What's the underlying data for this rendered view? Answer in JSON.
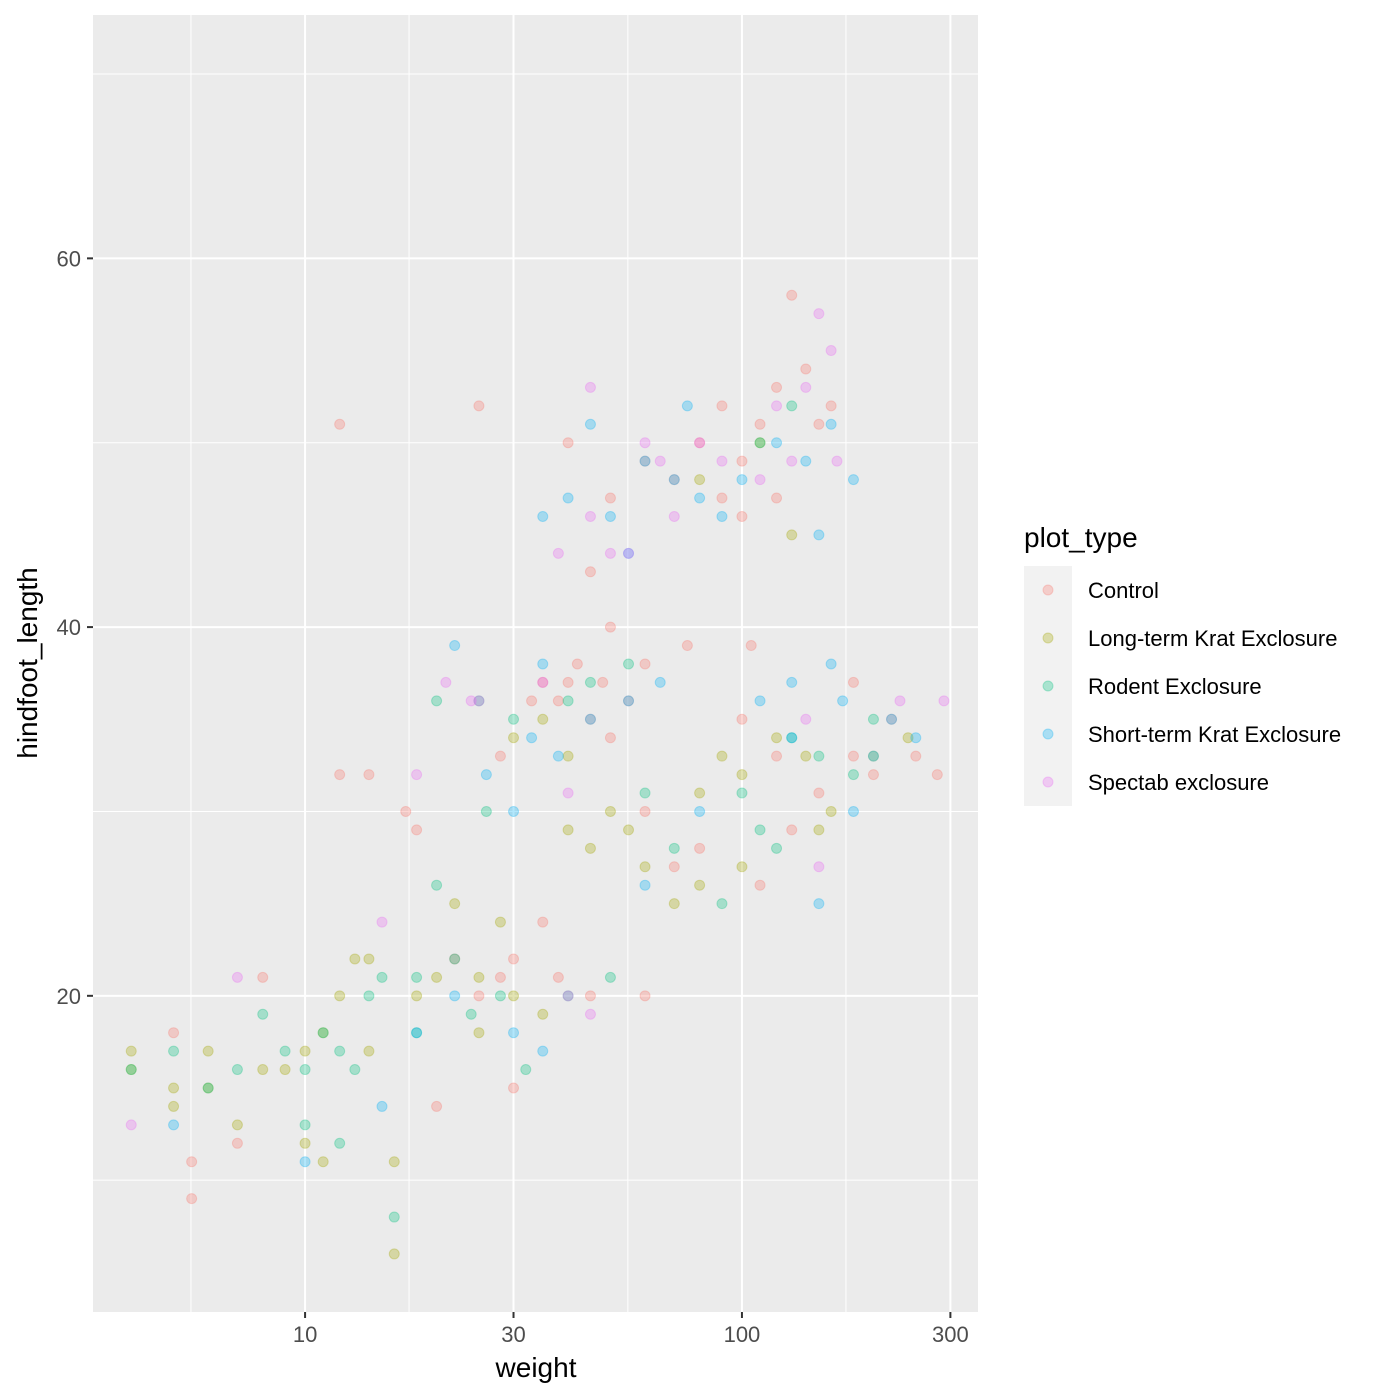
{
  "chart_data": {
    "type": "scatter",
    "xlabel": "weight",
    "ylabel": "hindfoot_length",
    "x_scale": "log10",
    "xlim": [
      3.27,
      347
    ],
    "ylim": [
      2.85,
      73.2
    ],
    "x_ticks": [
      "10",
      "30",
      "100",
      "300"
    ],
    "x_tick_values": [
      10,
      30,
      100,
      300
    ],
    "x_minor": [
      5.48,
      17.3,
      54.8,
      173
    ],
    "y_ticks": [
      "20",
      "40",
      "60"
    ],
    "y_tick_values": [
      20,
      40,
      60
    ],
    "y_minor": [
      10,
      30,
      50,
      70
    ],
    "grid": true,
    "point_alpha": 0.3,
    "legend": {
      "title": "plot_type",
      "position": "right"
    },
    "series": [
      {
        "name": "Control",
        "color": "#F8766D",
        "points": [
          [
            5,
            18
          ],
          [
            5.5,
            9
          ],
          [
            5.5,
            11
          ],
          [
            7,
            12
          ],
          [
            8,
            21
          ],
          [
            12,
            32
          ],
          [
            14,
            32
          ],
          [
            17,
            30
          ],
          [
            18,
            29
          ],
          [
            20,
            14
          ],
          [
            22,
            22
          ],
          [
            25,
            20
          ],
          [
            28,
            21
          ],
          [
            30,
            15
          ],
          [
            33,
            36
          ],
          [
            35,
            37
          ],
          [
            38,
            36
          ],
          [
            40,
            37
          ],
          [
            42,
            38
          ],
          [
            45,
            35
          ],
          [
            48,
            37
          ],
          [
            50,
            34
          ],
          [
            55,
            36
          ],
          [
            60,
            38
          ],
          [
            50,
            40
          ],
          [
            40,
            50
          ],
          [
            45,
            43
          ],
          [
            50,
            47
          ],
          [
            60,
            49
          ],
          [
            70,
            48
          ],
          [
            80,
            50
          ],
          [
            90,
            52
          ],
          [
            100,
            49
          ],
          [
            110,
            51
          ],
          [
            120,
            53
          ],
          [
            130,
            58
          ],
          [
            140,
            54
          ],
          [
            150,
            51
          ],
          [
            160,
            52
          ],
          [
            120,
            47
          ],
          [
            100,
            46
          ],
          [
            90,
            47
          ],
          [
            105,
            39
          ],
          [
            75,
            39
          ],
          [
            60,
            20
          ],
          [
            100,
            35
          ],
          [
            120,
            33
          ],
          [
            150,
            31
          ],
          [
            180,
            33
          ],
          [
            200,
            32
          ],
          [
            250,
            33
          ],
          [
            280,
            32
          ],
          [
            220,
            35
          ],
          [
            180,
            37
          ],
          [
            130,
            29
          ],
          [
            110,
            26
          ],
          [
            80,
            28
          ],
          [
            70,
            27
          ],
          [
            60,
            30
          ],
          [
            35,
            24
          ],
          [
            30,
            22
          ],
          [
            28,
            33
          ],
          [
            38,
            21
          ],
          [
            45,
            20
          ],
          [
            25,
            52
          ],
          [
            12,
            51
          ]
        ]
      },
      {
        "name": "Long-term Krat Exclosure",
        "color": "#A3A500",
        "points": [
          [
            4,
            17
          ],
          [
            4,
            16
          ],
          [
            5,
            15
          ],
          [
            5,
            14
          ],
          [
            6,
            17
          ],
          [
            6,
            15
          ],
          [
            7,
            13
          ],
          [
            8,
            16
          ],
          [
            9,
            16
          ],
          [
            10,
            17
          ],
          [
            11,
            18
          ],
          [
            12,
            20
          ],
          [
            13,
            22
          ],
          [
            14,
            17
          ],
          [
            16,
            11
          ],
          [
            10,
            12
          ],
          [
            11,
            11
          ],
          [
            16,
            6
          ],
          [
            14,
            22
          ],
          [
            18,
            20
          ],
          [
            20,
            21
          ],
          [
            22,
            25
          ],
          [
            25,
            21
          ],
          [
            28,
            24
          ],
          [
            30,
            20
          ],
          [
            35,
            19
          ],
          [
            40,
            29
          ],
          [
            45,
            28
          ],
          [
            50,
            30
          ],
          [
            55,
            29
          ],
          [
            60,
            27
          ],
          [
            70,
            25
          ],
          [
            80,
            31
          ],
          [
            90,
            33
          ],
          [
            100,
            32
          ],
          [
            120,
            34
          ],
          [
            140,
            33
          ],
          [
            160,
            30
          ],
          [
            200,
            33
          ],
          [
            240,
            34
          ],
          [
            150,
            29
          ],
          [
            80,
            26
          ],
          [
            40,
            33
          ],
          [
            35,
            35
          ],
          [
            30,
            34
          ],
          [
            80,
            48
          ],
          [
            110,
            50
          ],
          [
            130,
            45
          ],
          [
            100,
            27
          ],
          [
            25,
            18
          ]
        ]
      },
      {
        "name": "Rodent Exclosure",
        "color": "#00BF7D",
        "points": [
          [
            4,
            16
          ],
          [
            5,
            17
          ],
          [
            6,
            15
          ],
          [
            7,
            16
          ],
          [
            8,
            19
          ],
          [
            9,
            17
          ],
          [
            10,
            16
          ],
          [
            11,
            18
          ],
          [
            12,
            17
          ],
          [
            13,
            16
          ],
          [
            14,
            20
          ],
          [
            15,
            21
          ],
          [
            16,
            8
          ],
          [
            12,
            12
          ],
          [
            10,
            13
          ],
          [
            18,
            18
          ],
          [
            20,
            26
          ],
          [
            22,
            22
          ],
          [
            24,
            19
          ],
          [
            28,
            20
          ],
          [
            32,
            16
          ],
          [
            40,
            20
          ],
          [
            50,
            21
          ],
          [
            20,
            36
          ],
          [
            25,
            36
          ],
          [
            30,
            35
          ],
          [
            45,
            37
          ],
          [
            55,
            38
          ],
          [
            60,
            31
          ],
          [
            90,
            25
          ],
          [
            110,
            29
          ],
          [
            130,
            34
          ],
          [
            150,
            33
          ],
          [
            180,
            32
          ],
          [
            200,
            35
          ],
          [
            100,
            31
          ],
          [
            120,
            28
          ],
          [
            70,
            28
          ],
          [
            110,
            50
          ],
          [
            130,
            52
          ],
          [
            40,
            36
          ],
          [
            26,
            30
          ],
          [
            18,
            21
          ]
        ]
      },
      {
        "name": "Short-term Krat Exclosure",
        "color": "#00B0F6",
        "points": [
          [
            5,
            13
          ],
          [
            10,
            11
          ],
          [
            15,
            14
          ],
          [
            18,
            18
          ],
          [
            22,
            20
          ],
          [
            30,
            18
          ],
          [
            35,
            17
          ],
          [
            22,
            39
          ],
          [
            26,
            32
          ],
          [
            30,
            30
          ],
          [
            33,
            34
          ],
          [
            38,
            33
          ],
          [
            45,
            35
          ],
          [
            55,
            36
          ],
          [
            65,
            37
          ],
          [
            60,
            26
          ],
          [
            40,
            47
          ],
          [
            50,
            46
          ],
          [
            55,
            44
          ],
          [
            60,
            49
          ],
          [
            70,
            48
          ],
          [
            80,
            47
          ],
          [
            90,
            46
          ],
          [
            100,
            48
          ],
          [
            120,
            50
          ],
          [
            140,
            49
          ],
          [
            160,
            51
          ],
          [
            180,
            48
          ],
          [
            150,
            45
          ],
          [
            110,
            36
          ],
          [
            130,
            34
          ],
          [
            160,
            38
          ],
          [
            170,
            36
          ],
          [
            200,
            33
          ],
          [
            220,
            35
          ],
          [
            250,
            34
          ],
          [
            180,
            30
          ],
          [
            150,
            25
          ],
          [
            130,
            37
          ],
          [
            80,
            30
          ],
          [
            75,
            52
          ],
          [
            45,
            51
          ],
          [
            35,
            46
          ],
          [
            35,
            38
          ]
        ]
      },
      {
        "name": "Spectab exclosure",
        "color": "#E76BF3",
        "points": [
          [
            4,
            13
          ],
          [
            7,
            21
          ],
          [
            15,
            24
          ],
          [
            18,
            32
          ],
          [
            21,
            37
          ],
          [
            24,
            36
          ],
          [
            35,
            37
          ],
          [
            40,
            31
          ],
          [
            45,
            46
          ],
          [
            50,
            44
          ],
          [
            55,
            44
          ],
          [
            60,
            50
          ],
          [
            65,
            49
          ],
          [
            70,
            46
          ],
          [
            80,
            50
          ],
          [
            90,
            49
          ],
          [
            110,
            48
          ],
          [
            120,
            52
          ],
          [
            130,
            49
          ],
          [
            140,
            53
          ],
          [
            150,
            57
          ],
          [
            160,
            55
          ],
          [
            165,
            49
          ],
          [
            140,
            35
          ],
          [
            150,
            27
          ],
          [
            230,
            36
          ],
          [
            290,
            36
          ],
          [
            45,
            53
          ],
          [
            38,
            44
          ],
          [
            40,
            20
          ],
          [
            45,
            19
          ],
          [
            25,
            36
          ]
        ]
      }
    ]
  }
}
